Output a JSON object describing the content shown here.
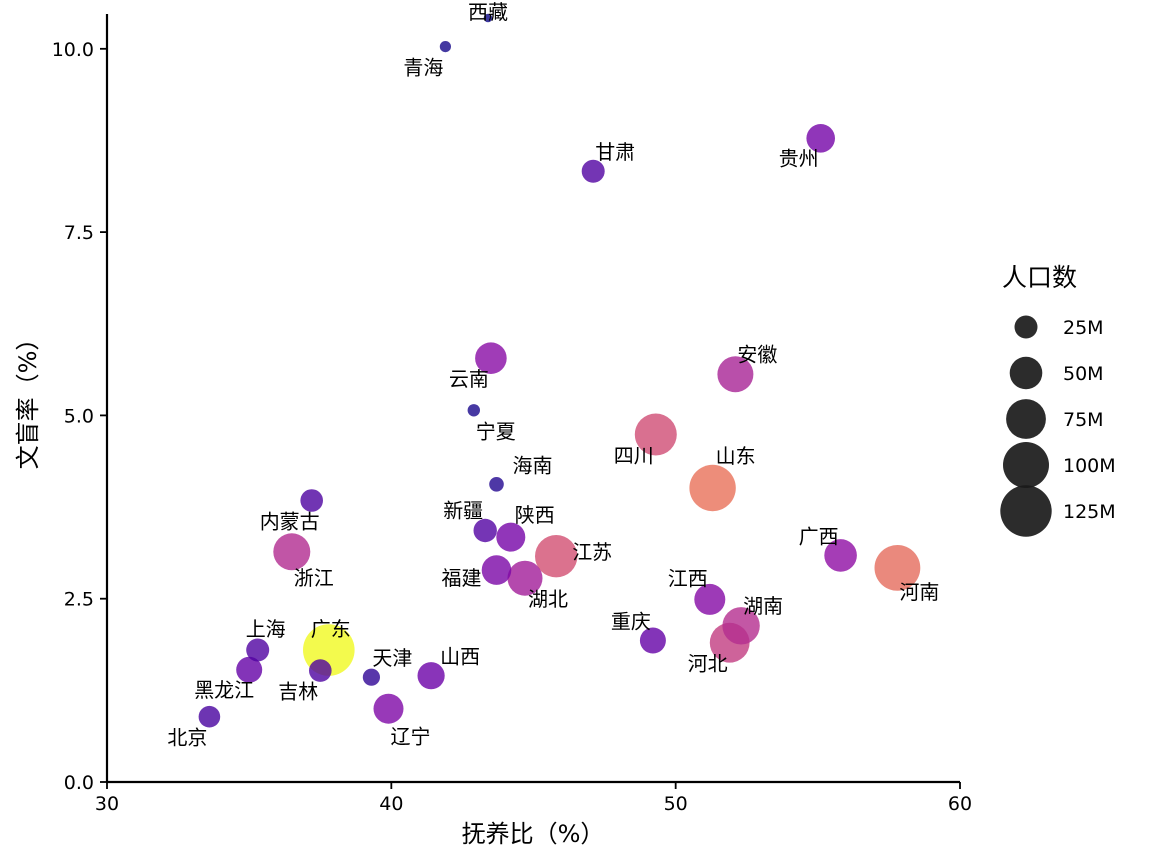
{
  "chart_data": {
    "type": "scatter",
    "xlabel": "抚养比（%）",
    "ylabel": "文盲率（%）",
    "xlim": [
      30,
      60
    ],
    "ylim": [
      0,
      10.5
    ],
    "x_ticks": [
      30,
      40,
      50,
      60
    ],
    "x_tick_labels": [
      "30",
      "40",
      "50",
      "60"
    ],
    "y_ticks": [
      0,
      2.5,
      5,
      7.5,
      10
    ],
    "y_tick_labels": [
      "0.0",
      "2.5",
      "5.0",
      "7.5",
      "10.0"
    ],
    "grid": false,
    "legend": {
      "title": "人口数",
      "placement": "right",
      "sizes": [
        25,
        50,
        75,
        100,
        125
      ],
      "labels": [
        "25M",
        "50M",
        "75M",
        "100M",
        "125M"
      ]
    },
    "color_scale": "plasma (by population)",
    "points": [
      {
        "label": "西藏",
        "x": 43.4,
        "y": 10.42,
        "pop": 3.5
      },
      {
        "label": "青海",
        "x": 41.9,
        "y": 10.03,
        "pop": 5.9
      },
      {
        "label": "甘肃",
        "x": 47.1,
        "y": 8.33,
        "pop": 25.0
      },
      {
        "label": "贵州",
        "x": 55.1,
        "y": 8.78,
        "pop": 38.6
      },
      {
        "label": "云南",
        "x": 43.5,
        "y": 5.78,
        "pop": 47.2
      },
      {
        "label": "安徽",
        "x": 52.1,
        "y": 5.56,
        "pop": 61.0
      },
      {
        "label": "宁夏",
        "x": 42.9,
        "y": 5.07,
        "pop": 7.2
      },
      {
        "label": "四川",
        "x": 49.3,
        "y": 4.74,
        "pop": 83.4
      },
      {
        "label": "山东",
        "x": 51.3,
        "y": 4.01,
        "pop": 101.5
      },
      {
        "label": "海南",
        "x": 43.7,
        "y": 4.06,
        "pop": 10.0
      },
      {
        "label": "内蒙古",
        "x": 37.2,
        "y": 3.84,
        "pop": 24.0
      },
      {
        "label": "新疆",
        "x": 43.3,
        "y": 3.43,
        "pop": 25.9
      },
      {
        "label": "陕西",
        "x": 44.2,
        "y": 3.34,
        "pop": 39.5
      },
      {
        "label": "浙江",
        "x": 36.5,
        "y": 3.14,
        "pop": 64.6
      },
      {
        "label": "福建",
        "x": 43.7,
        "y": 2.89,
        "pop": 41.5
      },
      {
        "label": "江苏",
        "x": 45.8,
        "y": 3.08,
        "pop": 84.7
      },
      {
        "label": "湖北",
        "x": 44.7,
        "y": 2.78,
        "pop": 57.8
      },
      {
        "label": "广西",
        "x": 55.8,
        "y": 3.09,
        "pop": 50.1
      },
      {
        "label": "河南",
        "x": 57.8,
        "y": 2.92,
        "pop": 99.4
      },
      {
        "label": "江西",
        "x": 51.2,
        "y": 2.49,
        "pop": 45.2
      },
      {
        "label": "湖南",
        "x": 52.3,
        "y": 2.13,
        "pop": 66.4
      },
      {
        "label": "重庆",
        "x": 49.2,
        "y": 1.93,
        "pop": 32.1
      },
      {
        "label": "河北",
        "x": 51.9,
        "y": 1.9,
        "pop": 74.6
      },
      {
        "label": "上海",
        "x": 35.3,
        "y": 1.8,
        "pop": 24.9
      },
      {
        "label": "广东",
        "x": 37.8,
        "y": 1.8,
        "pop": 126.0
      },
      {
        "label": "吉林",
        "x": 37.5,
        "y": 1.52,
        "pop": 24.1
      },
      {
        "label": "黑龙江",
        "x": 35.0,
        "y": 1.53,
        "pop": 31.9
      },
      {
        "label": "天津",
        "x": 39.3,
        "y": 1.43,
        "pop": 13.9
      },
      {
        "label": "山西",
        "x": 41.4,
        "y": 1.45,
        "pop": 34.9
      },
      {
        "label": "辽宁",
        "x": 39.9,
        "y": 1.0,
        "pop": 42.6
      },
      {
        "label": "北京",
        "x": 33.6,
        "y": 0.89,
        "pop": 21.9
      }
    ]
  }
}
